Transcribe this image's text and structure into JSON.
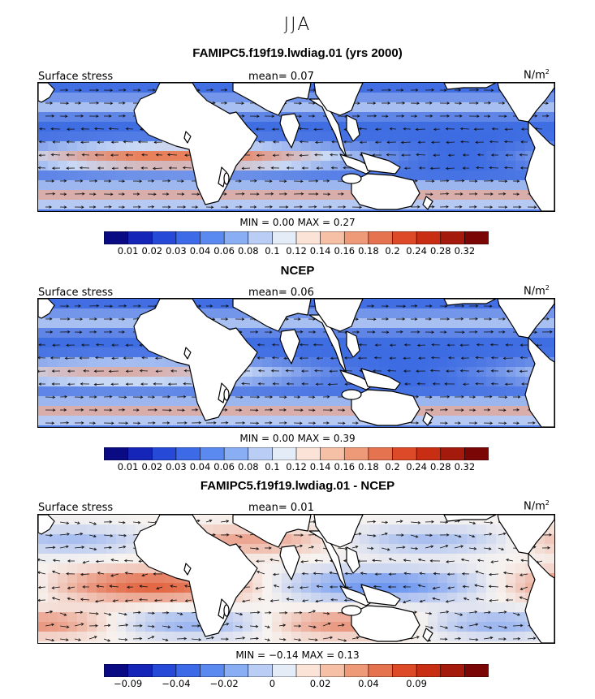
{
  "season": "JJA",
  "panels": [
    {
      "title": "FAMIPC5.f19f19.lwdiag.01 (yrs 2000)",
      "label": "Surface stress",
      "mean": "mean=    0.07",
      "units": "N/m",
      "units_exp": "2",
      "minmax": "MIN =    0.00  MAX =    0.27",
      "colorbar": {
        "colors": [
          "#0a0a82",
          "#1525b8",
          "#2649d8",
          "#3d6ae6",
          "#5a8af0",
          "#8aaef3",
          "#b9cdf5",
          "#e4ecf8",
          "#fbe3d8",
          "#f5c0a6",
          "#ee9a78",
          "#e57350",
          "#dc4a28",
          "#c82e14",
          "#a41a0c",
          "#7a0606"
        ],
        "tick_labels": [
          "0.01",
          "0.02",
          "0.03",
          "0.04",
          "0.06",
          "0.08",
          "0.1",
          "0.12",
          "0.14",
          "0.16",
          "0.18",
          "0.2",
          "0.24",
          "0.28",
          "0.32"
        ]
      },
      "map": {
        "field": "model",
        "color_low": "#2d5fe0",
        "color_mid": "#c9d9f5",
        "color_high": "#e9805c"
      }
    },
    {
      "title": "NCEP",
      "label": "Surface stress",
      "mean": "mean=    0.06",
      "units": "N/m",
      "units_exp": "2",
      "minmax": "MIN =    0.00  MAX =    0.39",
      "colorbar": {
        "colors": [
          "#0a0a82",
          "#1525b8",
          "#2649d8",
          "#3d6ae6",
          "#5a8af0",
          "#8aaef3",
          "#b9cdf5",
          "#e4ecf8",
          "#fbe3d8",
          "#f5c0a6",
          "#ee9a78",
          "#e57350",
          "#dc4a28",
          "#c82e14",
          "#a41a0c",
          "#7a0606"
        ],
        "tick_labels": [
          "0.01",
          "0.02",
          "0.03",
          "0.04",
          "0.06",
          "0.08",
          "0.1",
          "0.12",
          "0.14",
          "0.16",
          "0.18",
          "0.2",
          "0.24",
          "0.28",
          "0.32"
        ]
      },
      "map": {
        "field": "obs",
        "color_low": "#2d5fe0",
        "color_mid": "#c9d9f5",
        "color_high": "#e9805c"
      }
    },
    {
      "title": "FAMIPC5.f19f19.lwdiag.01 - NCEP",
      "label": "Surface stress",
      "mean": "mean=    0.01",
      "units": "N/m",
      "units_exp": "2",
      "minmax": "MIN =   −0.14  MAX =    0.13",
      "colorbar": {
        "colors": [
          "#0a0a82",
          "#1525b8",
          "#2649d8",
          "#3d6ae6",
          "#5a8af0",
          "#8aaef3",
          "#b9cdf5",
          "#e4ecf8",
          "#fbe3d8",
          "#f5c0a6",
          "#ee9a78",
          "#e57350",
          "#dc4a28",
          "#c82e14",
          "#a41a0c",
          "#7a0606"
        ],
        "tick_labels": [
          "−0.09",
          "",
          "−0.04",
          "",
          "−0.02",
          "",
          "0",
          "",
          "0.02",
          "",
          "0.04",
          "",
          "0.09",
          "",
          ""
        ]
      },
      "map": {
        "field": "diff",
        "color_low": "#5a8af0",
        "color_mid": "#f7f3f0",
        "color_high": "#e0552e"
      }
    }
  ]
}
